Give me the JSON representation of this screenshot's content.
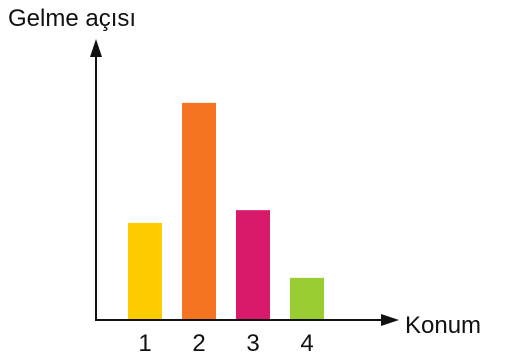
{
  "chart_data": {
    "type": "bar",
    "categories": [
      "1",
      "2",
      "3",
      "4"
    ],
    "values": [
      7.6,
      17.0,
      8.6,
      3.3
    ],
    "ylabel": "Gelme açısı",
    "xlabel": "Konum",
    "ylim": [
      0,
      22
    ],
    "grid": false,
    "legend": "none",
    "colors": [
      "#FFCC00",
      "#F47421",
      "#D91A6B",
      "#9ACD32"
    ]
  }
}
